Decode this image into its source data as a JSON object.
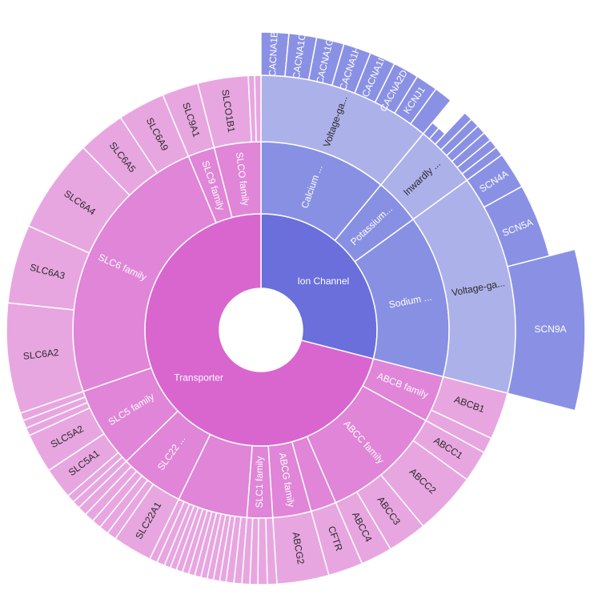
{
  "chart_data": {
    "type": "sunburst",
    "colors": {
      "transporter": [
        "#d966cf",
        "#e085d7",
        "#e8a6e1",
        "#eab2e5"
      ],
      "ion_channel": [
        "#6a6fdc",
        "#8890e3",
        "#adb1ea",
        "#8a91e4"
      ]
    },
    "root": [
      {
        "label": "Transporter",
        "group": "transporter",
        "value": 71,
        "children": [
          {
            "label": "ABCB family",
            "value": 4,
            "children": [
              {
                "label": "ABCB1",
                "value": 3
              },
              {
                "label": "",
                "value": 1
              }
            ]
          },
          {
            "label": "ABCC family",
            "value": 10.5,
            "children": [
              {
                "label": "ABCC1",
                "value": 2
              },
              {
                "label": "ABCC2",
                "value": 4
              },
              {
                "label": "ABCC3",
                "value": 2.5
              },
              {
                "label": "ABCC4",
                "value": 2
              }
            ]
          },
          {
            "label": "",
            "value": 2.2,
            "children": [
              {
                "label": "CFTR",
                "value": 2.2
              }
            ]
          },
          {
            "label": "ABCG family",
            "value": 3.3,
            "children": [
              {
                "label": "ABCG2",
                "value": 3.3
              }
            ]
          },
          {
            "label": "SLC1 family",
            "value": 2.2,
            "children": [
              {
                "label": "",
                "value": 0.6
              },
              {
                "label": "",
                "value": 0.6
              },
              {
                "label": "",
                "value": 0.5
              },
              {
                "label": "",
                "value": 0.5
              }
            ]
          },
          {
            "label": "",
            "value": 6,
            "children": [
              {
                "label": "",
                "value": 0.5
              },
              {
                "label": "",
                "value": 0.5
              },
              {
                "label": "",
                "value": 0.4
              },
              {
                "label": "",
                "value": 0.4
              },
              {
                "label": "",
                "value": 0.4
              },
              {
                "label": "",
                "value": 0.4
              },
              {
                "label": "",
                "value": 0.4
              },
              {
                "label": "",
                "value": 0.4
              },
              {
                "label": "",
                "value": 0.4
              },
              {
                "label": "",
                "value": 0.4
              },
              {
                "label": "",
                "value": 0.4
              },
              {
                "label": "",
                "value": 0.4
              },
              {
                "label": "",
                "value": 0.5
              },
              {
                "label": "",
                "value": 0.5
              }
            ]
          },
          {
            "label": "SLC22 ...",
            "value": 5.5,
            "children": [
              {
                "label": "SLC22A1",
                "value": 2.5
              },
              {
                "label": "",
                "value": 0.6
              },
              {
                "label": "",
                "value": 0.6
              },
              {
                "label": "",
                "value": 0.6
              },
              {
                "label": "",
                "value": 0.6
              },
              {
                "label": "",
                "value": 0.6
              }
            ]
          },
          {
            "label": "SLC5 family",
            "value": 7,
            "children": [
              {
                "label": "",
                "value": 0.5
              },
              {
                "label": "",
                "value": 0.5
              },
              {
                "label": "SLC5A1",
                "value": 2
              },
              {
                "label": "SLC5A2",
                "value": 2.5
              },
              {
                "label": "",
                "value": 0.5
              },
              {
                "label": "",
                "value": 0.5
              },
              {
                "label": "",
                "value": 0.5
              }
            ]
          },
          {
            "label": "SLC6 family",
            "value": 24,
            "children": [
              {
                "label": "SLC6A2",
                "value": 7
              },
              {
                "label": "SLC6A3",
                "value": 5
              },
              {
                "label": "SLC6A4",
                "value": 6
              },
              {
                "label": "SLC6A5",
                "value": 3
              },
              {
                "label": "SLC6A9",
                "value": 3
              }
            ]
          },
          {
            "label": "SLC9 family",
            "value": 2.3,
            "children": [
              {
                "label": "SLC9A1",
                "value": 2.3
              }
            ]
          },
          {
            "label": "SLCO family",
            "value": 4,
            "children": [
              {
                "label": "SLCO1B1",
                "value": 3.2
              },
              {
                "label": "",
                "value": 0.4
              },
              {
                "label": "",
                "value": 0.4
              }
            ]
          }
        ]
      },
      {
        "label": "Ion Channel",
        "group": "ion_channel",
        "value": 29,
        "children": [
          {
            "label": "Calcium ...",
            "value": 11,
            "children": [
              {
                "label": "Voltage-ga...",
                "value": 11,
                "children": [
                  {
                    "label": "CACNA1B",
                    "value": 1.5
                  },
                  {
                    "label": "CACNA1C",
                    "value": 1.5
                  },
                  {
                    "label": "CACNA1G",
                    "value": 1.5
                  },
                  {
                    "label": "CACNA1H",
                    "value": 1.5
                  },
                  {
                    "label": "CACNA1I",
                    "value": 1.4
                  },
                  {
                    "label": "CACNA2D1",
                    "value": 1.4
                  },
                  {
                    "label": "KCNJ1",
                    "value": 1.2
                  },
                  {
                    "label": "",
                    "value": 1
                  }
                ]
              }
            ]
          },
          {
            "label": "Potassium...",
            "value": 4,
            "children": [
              {
                "label": "Inwardly ...",
                "value": 4,
                "children": [
                  {
                    "label": "",
                    "value": 0.5,
                    "outer": 336
                  },
                  {
                    "label": "",
                    "value": 0.5,
                    "outer": 336
                  },
                  {
                    "label": "",
                    "value": 0.5
                  },
                  {
                    "label": "",
                    "value": 0.5
                  },
                  {
                    "label": "",
                    "value": 0.5
                  },
                  {
                    "label": "",
                    "value": 0.5
                  },
                  {
                    "label": "",
                    "value": 0.5
                  },
                  {
                    "label": "",
                    "value": 0.5
                  }
                ]
              }
            ]
          },
          {
            "label": "Sodium ...",
            "value": 14,
            "children": [
              {
                "label": "Voltage-ga...",
                "value": 14,
                "children": [
                  {
                    "label": "SCN4A",
                    "value": 2
                  },
                  {
                    "label": "SCN5A",
                    "value": 4
                  },
                  {
                    "label": "SCN9A",
                    "value": 8,
                    "outer": 405
                  }
                ]
              }
            ]
          }
        ]
      }
    ]
  }
}
